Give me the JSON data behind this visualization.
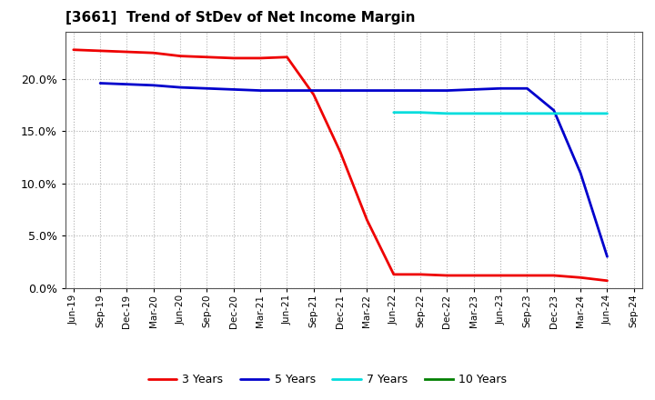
{
  "title": "[3661]  Trend of StDev of Net Income Margin",
  "background_color": "#ffffff",
  "plot_bg_color": "#ffffff",
  "grid_color": "#b0b0b0",
  "series_order": [
    "3 Years",
    "5 Years",
    "7 Years",
    "10 Years"
  ],
  "series": {
    "3 Years": {
      "color": "#ee0000",
      "dates": [
        "Jun-19",
        "Sep-19",
        "Dec-19",
        "Mar-20",
        "Jun-20",
        "Sep-20",
        "Dec-20",
        "Mar-21",
        "Jun-21",
        "Sep-21",
        "Dec-21",
        "Mar-22",
        "Jun-22",
        "Sep-22",
        "Dec-22",
        "Mar-23",
        "Jun-23",
        "Sep-23",
        "Dec-23",
        "Mar-24",
        "Jun-24"
      ],
      "values": [
        0.228,
        0.227,
        0.226,
        0.225,
        0.222,
        0.221,
        0.22,
        0.22,
        0.221,
        0.185,
        0.13,
        0.065,
        0.013,
        0.013,
        0.012,
        0.012,
        0.012,
        0.012,
        0.012,
        0.01,
        0.007
      ]
    },
    "5 Years": {
      "color": "#0000cc",
      "dates": [
        "Sep-19",
        "Dec-19",
        "Mar-20",
        "Jun-20",
        "Sep-20",
        "Dec-20",
        "Mar-21",
        "Jun-21",
        "Sep-21",
        "Dec-21",
        "Mar-22",
        "Jun-22",
        "Sep-22",
        "Dec-22",
        "Mar-23",
        "Jun-23",
        "Sep-23",
        "Dec-23",
        "Mar-24",
        "Jun-24"
      ],
      "values": [
        0.196,
        0.195,
        0.194,
        0.192,
        0.191,
        0.19,
        0.189,
        0.189,
        0.189,
        0.189,
        0.189,
        0.189,
        0.189,
        0.189,
        0.19,
        0.191,
        0.191,
        0.17,
        0.11,
        0.03
      ]
    },
    "7 Years": {
      "color": "#00dddd",
      "dates": [
        "Jun-22",
        "Sep-22",
        "Dec-22",
        "Mar-23",
        "Jun-23",
        "Sep-23",
        "Dec-23",
        "Mar-24",
        "Jun-24"
      ],
      "values": [
        0.168,
        0.168,
        0.167,
        0.167,
        0.167,
        0.167,
        0.167,
        0.167,
        0.167
      ]
    },
    "10 Years": {
      "color": "#008000",
      "dates": [],
      "values": []
    }
  },
  "ylim": [
    0.0,
    0.245
  ],
  "yticks": [
    0.0,
    0.05,
    0.1,
    0.15,
    0.2
  ],
  "xticks": [
    "Jun-19",
    "Sep-19",
    "Dec-19",
    "Mar-20",
    "Jun-20",
    "Sep-20",
    "Dec-20",
    "Mar-21",
    "Jun-21",
    "Sep-21",
    "Dec-21",
    "Mar-22",
    "Jun-22",
    "Sep-22",
    "Dec-22",
    "Mar-23",
    "Jun-23",
    "Sep-23",
    "Dec-23",
    "Mar-24",
    "Jun-24",
    "Sep-24"
  ]
}
